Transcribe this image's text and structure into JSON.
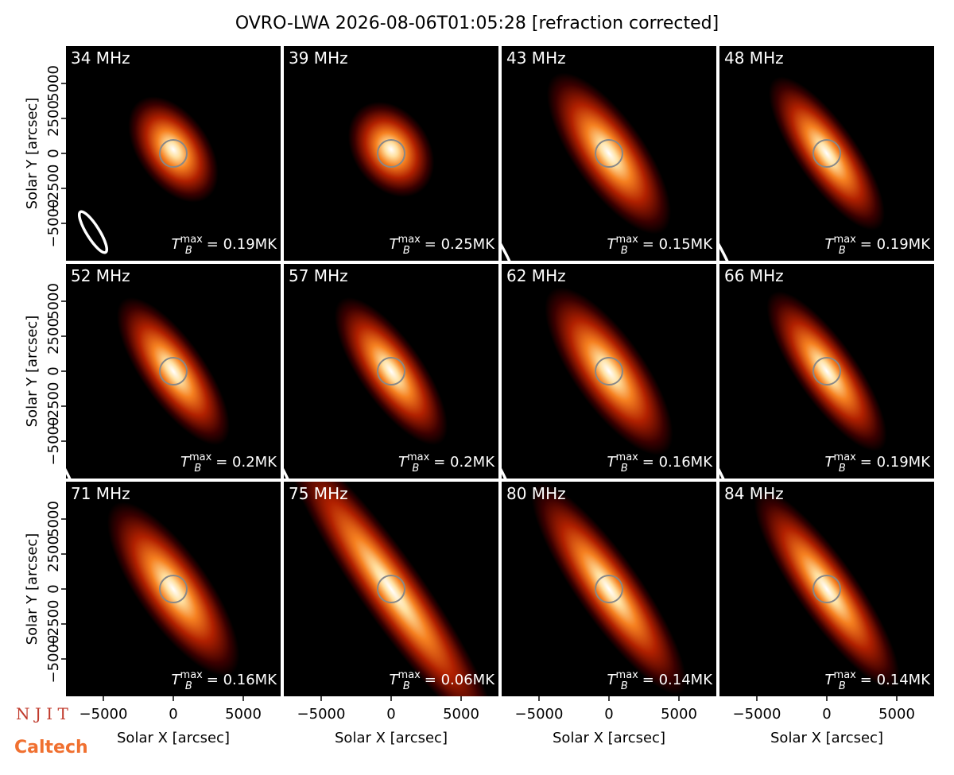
{
  "title": "OVRO-LWA 2026-08-06T01:05:28 [refraction corrected]",
  "logos": [
    "N J I T",
    "Caltech"
  ],
  "chart_data": [
    {
      "type": "image",
      "title": "34 MHz",
      "xlim": [
        -7670,
        7670
      ],
      "ylim": [
        -7670,
        7670
      ],
      "ylabel": "Solar Y [arcsec]",
      "yticks": [
        {
          "value": -5000,
          "label": "−5000"
        },
        {
          "value": -2500,
          "label": "−2500"
        },
        0,
        2500,
        5000
      ],
      "tb_symbol": "T",
      "tb_sub": "B",
      "tb_sup": "max",
      "tb_value": "= 0.19MK"
    },
    {
      "type": "image",
      "title": "39 MHz",
      "xlim": [
        -7670,
        7670
      ],
      "ylim": [
        -7670,
        7670
      ],
      "tb_symbol": "T",
      "tb_sub": "B",
      "tb_sup": "max",
      "tb_value": "= 0.25MK"
    },
    {
      "type": "image",
      "title": "43 MHz",
      "xlim": [
        -7670,
        7670
      ],
      "ylim": [
        -7670,
        7670
      ],
      "tb_symbol": "T",
      "tb_sub": "B",
      "tb_sup": "max",
      "tb_value": "= 0.15MK"
    },
    {
      "type": "image",
      "title": "48 MHz",
      "xlim": [
        -7670,
        7670
      ],
      "ylim": [
        -7670,
        7670
      ],
      "tb_symbol": "T",
      "tb_sub": "B",
      "tb_sup": "max",
      "tb_value": "= 0.19MK"
    },
    {
      "type": "image",
      "title": "52 MHz",
      "xlim": [
        -7670,
        7670
      ],
      "ylim": [
        -7670,
        7670
      ],
      "ylabel": "Solar Y [arcsec]",
      "yticks": [
        {
          "value": -5000,
          "label": "−5000"
        },
        {
          "value": -2500,
          "label": "−2500"
        },
        0,
        2500,
        5000
      ],
      "tb_symbol": "T",
      "tb_sub": "B",
      "tb_sup": "max",
      "tb_value": "= 0.2MK"
    },
    {
      "type": "image",
      "title": "57 MHz",
      "xlim": [
        -7670,
        7670
      ],
      "ylim": [
        -7670,
        7670
      ],
      "tb_symbol": "T",
      "tb_sub": "B",
      "tb_sup": "max",
      "tb_value": "= 0.2MK"
    },
    {
      "type": "image",
      "title": "62 MHz",
      "xlim": [
        -7670,
        7670
      ],
      "ylim": [
        -7670,
        7670
      ],
      "tb_symbol": "T",
      "tb_sub": "B",
      "tb_sup": "max",
      "tb_value": "= 0.16MK"
    },
    {
      "type": "image",
      "title": "66 MHz",
      "xlim": [
        -7670,
        7670
      ],
      "ylim": [
        -7670,
        7670
      ],
      "tb_symbol": "T",
      "tb_sub": "B",
      "tb_sup": "max",
      "tb_value": "= 0.19MK"
    },
    {
      "type": "image",
      "title": "71 MHz",
      "xlim": [
        -7670,
        7670
      ],
      "ylim": [
        -7670,
        7670
      ],
      "ylabel": "Solar Y [arcsec]",
      "yticks": [
        {
          "value": -5000,
          "label": "−5000"
        },
        {
          "value": -2500,
          "label": "−2500"
        },
        0,
        2500,
        5000
      ],
      "xlabel": "Solar X [arcsec]",
      "xticks": [
        {
          "value": -5000,
          "label": "−5000"
        },
        0,
        5000
      ],
      "tb_symbol": "T",
      "tb_sub": "B",
      "tb_sup": "max",
      "tb_value": "= 0.16MK"
    },
    {
      "type": "image",
      "title": "75 MHz",
      "xlim": [
        -7670,
        7670
      ],
      "ylim": [
        -7670,
        7670
      ],
      "xlabel": "Solar X [arcsec]",
      "xticks": [
        {
          "value": -5000,
          "label": "−5000"
        },
        0,
        5000
      ],
      "tb_symbol": "T",
      "tb_sub": "B",
      "tb_sup": "max",
      "tb_value": "= 0.06MK"
    },
    {
      "type": "image",
      "title": "80 MHz",
      "xlim": [
        -7670,
        7670
      ],
      "ylim": [
        -7670,
        7670
      ],
      "xlabel": "Solar X [arcsec]",
      "xticks": [
        {
          "value": -5000,
          "label": "−5000"
        },
        0,
        5000
      ],
      "tb_symbol": "T",
      "tb_sub": "B",
      "tb_sup": "max",
      "tb_value": "= 0.14MK"
    },
    {
      "type": "image",
      "title": "84 MHz",
      "xlim": [
        -7670,
        7670
      ],
      "ylim": [
        -7670,
        7670
      ],
      "xlabel": "Solar X [arcsec]",
      "xticks": [
        {
          "value": -5000,
          "label": "−5000"
        },
        0,
        5000
      ],
      "tb_symbol": "T",
      "tb_sub": "B",
      "tb_sup": "max",
      "tb_value": "= 0.14MK"
    }
  ]
}
